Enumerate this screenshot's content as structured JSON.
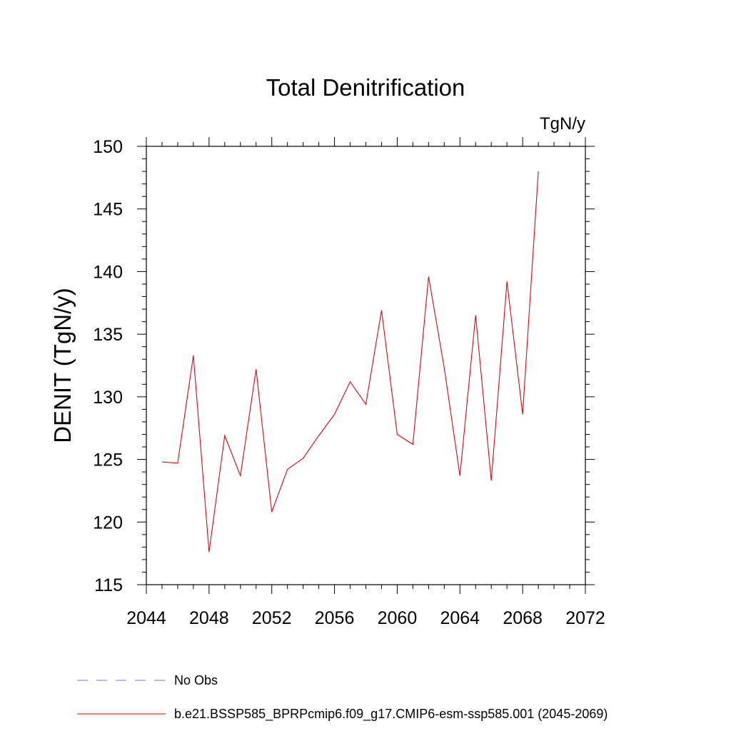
{
  "chart_data": {
    "type": "line",
    "title": "Total Denitrification",
    "units_label": "TgN/y",
    "ylabel": "DENIT  (TgN/y)",
    "xlabel": "",
    "xlim": [
      2044,
      2072
    ],
    "ylim": [
      115,
      150
    ],
    "x_ticks": [
      2044,
      2048,
      2052,
      2056,
      2060,
      2064,
      2068,
      2072
    ],
    "y_ticks": [
      115,
      120,
      125,
      130,
      135,
      140,
      145,
      150
    ],
    "grid": false,
    "legend_position": "bottom",
    "legend": [
      {
        "name": "No Obs",
        "color": "#7b6fd6",
        "dashed": true
      },
      {
        "name": "b.e21.BSSP585_BPRPcmip6.f09_g17.CMIP6-esm-ssp585.001 (2045-2069)",
        "color": "#e8000b",
        "dashed": false
      }
    ],
    "series": [
      {
        "name": "b.e21.BSSP585_BPRPcmip6.f09_g17.CMIP6-esm-ssp585.001 (2045-2069)",
        "color": "#e8000b",
        "x": [
          2045,
          2046,
          2047,
          2048,
          2049,
          2050,
          2051,
          2052,
          2053,
          2054,
          2055,
          2056,
          2057,
          2058,
          2059,
          2060,
          2061,
          2062,
          2063,
          2064,
          2065,
          2066,
          2067,
          2068,
          2069
        ],
        "y": [
          124.8,
          124.7,
          133.3,
          117.6,
          126.9,
          123.7,
          132.2,
          120.8,
          124.2,
          125.1,
          126.9,
          128.6,
          131.2,
          129.4,
          136.9,
          127.0,
          126.2,
          139.6,
          132.3,
          123.7,
          136.5,
          123.3,
          139.2,
          128.6,
          148.0
        ]
      }
    ]
  }
}
